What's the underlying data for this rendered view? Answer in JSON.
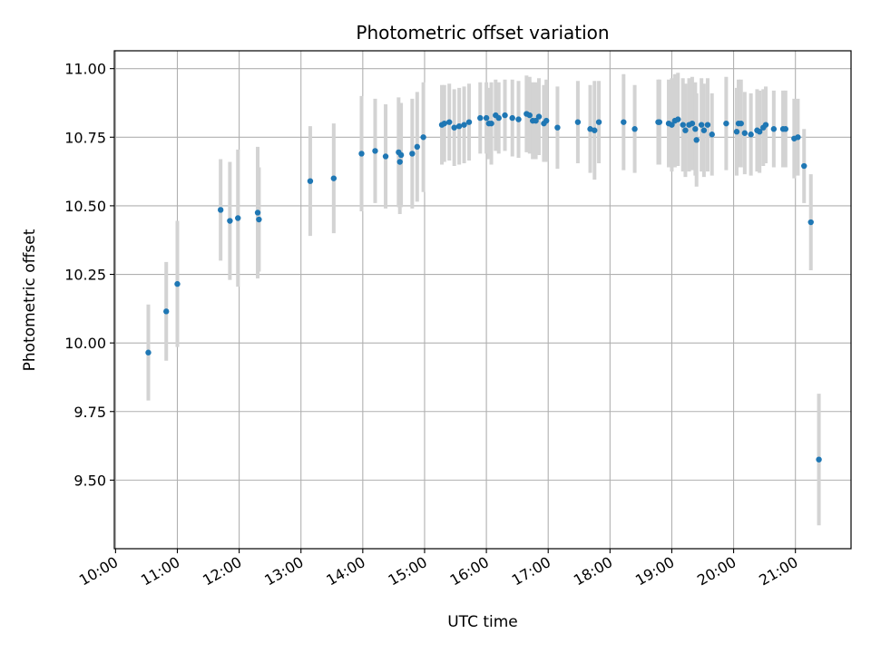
{
  "chart_data": {
    "type": "scatter",
    "title": "Photometric offset variation",
    "xlabel": "UTC time",
    "ylabel": "Photometric offset",
    "x_unit": "hours since 10:00 UTC",
    "xlim": [
      -0.02,
      11.9
    ],
    "ylim": [
      9.25,
      11.065
    ],
    "grid": true,
    "x_ticks": [
      {
        "value": 0,
        "label": "10:00"
      },
      {
        "value": 1,
        "label": "11:00"
      },
      {
        "value": 2,
        "label": "12:00"
      },
      {
        "value": 3,
        "label": "13:00"
      },
      {
        "value": 4,
        "label": "14:00"
      },
      {
        "value": 5,
        "label": "15:00"
      },
      {
        "value": 6,
        "label": "16:00"
      },
      {
        "value": 7,
        "label": "17:00"
      },
      {
        "value": 8,
        "label": "18:00"
      },
      {
        "value": 9,
        "label": "19:00"
      },
      {
        "value": 10,
        "label": "20:00"
      },
      {
        "value": 11,
        "label": "21:00"
      }
    ],
    "y_ticks": [
      {
        "value": 9.5,
        "label": "9.50"
      },
      {
        "value": 9.75,
        "label": "9.75"
      },
      {
        "value": 10.0,
        "label": "10.00"
      },
      {
        "value": 10.25,
        "label": "10.25"
      },
      {
        "value": 10.5,
        "label": "10.50"
      },
      {
        "value": 10.75,
        "label": "10.75"
      },
      {
        "value": 11.0,
        "label": "11.00"
      }
    ],
    "marker_color": "#1f77b4",
    "errorbar_color": "#d3d3d3",
    "series": [
      {
        "name": "Photometric offset",
        "points": [
          [
            0.53,
            9.965,
            0.175
          ],
          [
            0.82,
            10.115,
            0.18
          ],
          [
            1.0,
            10.215,
            0.23
          ],
          [
            1.7,
            10.485,
            0.185
          ],
          [
            1.85,
            10.445,
            0.215
          ],
          [
            1.98,
            10.455,
            0.25
          ],
          [
            2.3,
            10.475,
            0.24
          ],
          [
            2.32,
            10.45,
            0.19
          ],
          [
            3.15,
            10.59,
            0.2
          ],
          [
            3.53,
            10.6,
            0.2
          ],
          [
            3.98,
            10.69,
            0.21
          ],
          [
            4.2,
            10.7,
            0.19
          ],
          [
            4.37,
            10.68,
            0.19
          ],
          [
            4.58,
            10.695,
            0.2
          ],
          [
            4.6,
            10.66,
            0.19
          ],
          [
            4.62,
            10.685,
            0.19
          ],
          [
            4.8,
            10.69,
            0.2
          ],
          [
            4.88,
            10.715,
            0.2
          ],
          [
            4.98,
            10.75,
            0.2
          ],
          [
            5.28,
            10.795,
            0.145
          ],
          [
            5.32,
            10.8,
            0.14
          ],
          [
            5.4,
            10.805,
            0.14
          ],
          [
            5.48,
            10.785,
            0.14
          ],
          [
            5.56,
            10.79,
            0.14
          ],
          [
            5.64,
            10.795,
            0.14
          ],
          [
            5.72,
            10.805,
            0.14
          ],
          [
            5.9,
            10.82,
            0.13
          ],
          [
            6.0,
            10.82,
            0.13
          ],
          [
            6.04,
            10.8,
            0.13
          ],
          [
            6.08,
            10.8,
            0.15
          ],
          [
            6.15,
            10.83,
            0.13
          ],
          [
            6.2,
            10.82,
            0.13
          ],
          [
            6.3,
            10.83,
            0.13
          ],
          [
            6.42,
            10.82,
            0.14
          ],
          [
            6.52,
            10.815,
            0.14
          ],
          [
            6.65,
            10.835,
            0.14
          ],
          [
            6.7,
            10.83,
            0.14
          ],
          [
            6.75,
            10.81,
            0.14
          ],
          [
            6.8,
            10.81,
            0.14
          ],
          [
            6.85,
            10.825,
            0.14
          ],
          [
            6.93,
            10.8,
            0.14
          ],
          [
            6.97,
            10.81,
            0.15
          ],
          [
            7.15,
            10.785,
            0.15
          ],
          [
            7.48,
            10.805,
            0.15
          ],
          [
            7.68,
            10.78,
            0.16
          ],
          [
            7.75,
            10.775,
            0.18
          ],
          [
            7.82,
            10.805,
            0.15
          ],
          [
            8.22,
            10.805,
            0.175
          ],
          [
            8.4,
            10.78,
            0.16
          ],
          [
            8.78,
            10.805,
            0.155
          ],
          [
            8.8,
            10.805,
            0.155
          ],
          [
            8.95,
            10.8,
            0.16
          ],
          [
            9.0,
            10.795,
            0.17
          ],
          [
            9.05,
            10.81,
            0.17
          ],
          [
            9.1,
            10.815,
            0.17
          ],
          [
            9.18,
            10.795,
            0.17
          ],
          [
            9.22,
            10.775,
            0.17
          ],
          [
            9.28,
            10.795,
            0.17
          ],
          [
            9.33,
            10.8,
            0.17
          ],
          [
            9.38,
            10.78,
            0.17
          ],
          [
            9.4,
            10.74,
            0.17
          ],
          [
            9.48,
            10.795,
            0.17
          ],
          [
            9.52,
            10.775,
            0.17
          ],
          [
            9.58,
            10.795,
            0.17
          ],
          [
            9.65,
            10.76,
            0.15
          ],
          [
            9.88,
            10.8,
            0.17
          ],
          [
            10.05,
            10.77,
            0.16
          ],
          [
            10.08,
            10.8,
            0.16
          ],
          [
            10.12,
            10.8,
            0.16
          ],
          [
            10.18,
            10.765,
            0.15
          ],
          [
            10.28,
            10.76,
            0.15
          ],
          [
            10.38,
            10.775,
            0.15
          ],
          [
            10.42,
            10.77,
            0.15
          ],
          [
            10.48,
            10.785,
            0.14
          ],
          [
            10.52,
            10.795,
            0.14
          ],
          [
            10.65,
            10.78,
            0.14
          ],
          [
            10.8,
            10.78,
            0.14
          ],
          [
            10.84,
            10.78,
            0.14
          ],
          [
            10.98,
            10.745,
            0.145
          ],
          [
            11.04,
            10.75,
            0.14
          ],
          [
            11.14,
            10.645,
            0.135
          ],
          [
            11.25,
            10.44,
            0.175
          ],
          [
            11.38,
            9.575,
            0.24
          ]
        ]
      }
    ]
  }
}
